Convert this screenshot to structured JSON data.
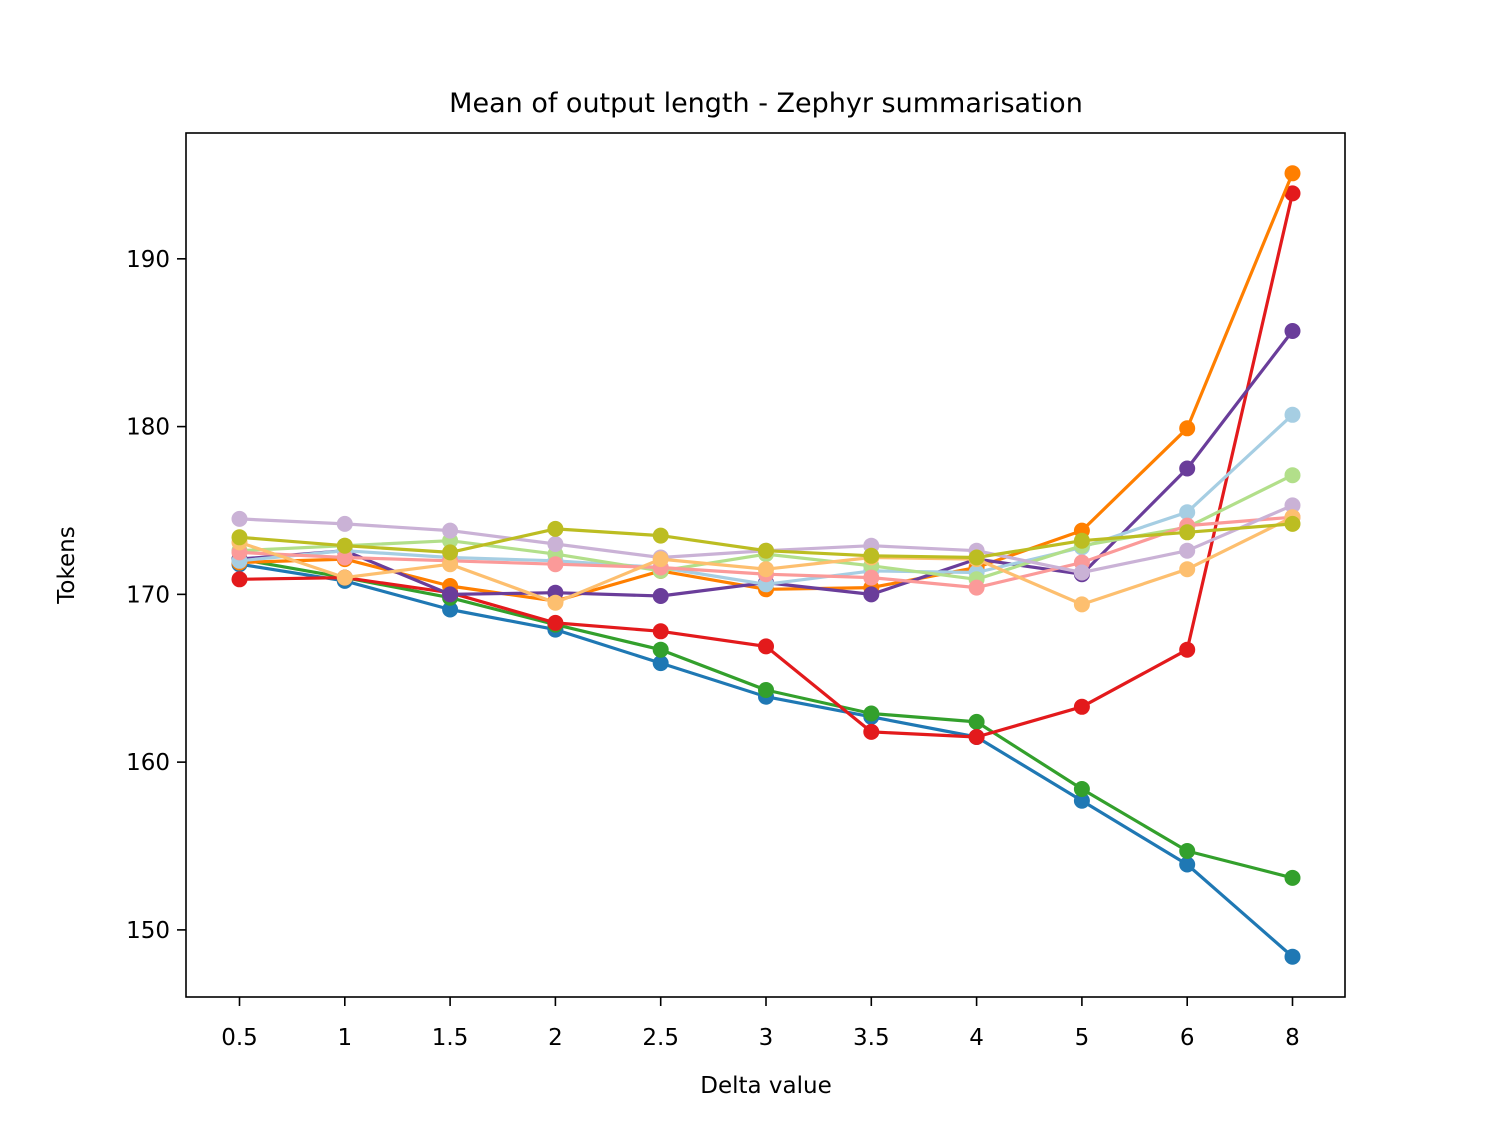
{
  "chart_data": {
    "type": "line",
    "title": "Mean of output length - Zephyr summarisation",
    "xlabel": "Delta value",
    "ylabel": "Tokens",
    "categories": [
      "0.5",
      "1",
      "1.5",
      "2",
      "2.5",
      "3",
      "3.5",
      "4",
      "5",
      "6",
      "8"
    ],
    "ylim": [
      146,
      197.5
    ],
    "yticks": [
      150,
      160,
      170,
      180,
      190
    ],
    "grid": false,
    "legend": "none",
    "series": [
      {
        "color": "#1f78b4",
        "values": [
          171.8,
          170.8,
          169.1,
          167.9,
          165.9,
          163.9,
          162.7,
          161.5,
          157.7,
          153.9,
          148.4
        ]
      },
      {
        "color": "#33a02c",
        "values": [
          172.1,
          171.0,
          169.8,
          168.2,
          166.7,
          164.3,
          162.9,
          162.4,
          158.4,
          154.7,
          153.1
        ]
      },
      {
        "color": "#e31a1c",
        "values": [
          170.9,
          171.0,
          170.1,
          168.3,
          167.8,
          166.9,
          161.8,
          161.5,
          163.3,
          166.7,
          193.9
        ]
      },
      {
        "color": "#ff7f00",
        "values": [
          171.9,
          172.1,
          170.5,
          169.6,
          171.4,
          170.3,
          170.4,
          171.6,
          173.8,
          179.9,
          195.1
        ]
      },
      {
        "color": "#6a3d9a",
        "values": [
          172.1,
          172.6,
          170.0,
          170.1,
          169.9,
          170.7,
          170.0,
          172.1,
          171.2,
          177.5,
          185.7
        ]
      },
      {
        "color": "#a6cee3",
        "values": [
          172.0,
          172.6,
          172.2,
          172.0,
          171.6,
          170.6,
          171.4,
          171.3,
          172.8,
          174.9,
          180.7
        ]
      },
      {
        "color": "#b2df8a",
        "values": [
          172.6,
          172.9,
          173.2,
          172.4,
          171.4,
          172.4,
          171.7,
          170.9,
          172.9,
          174.0,
          177.1
        ]
      },
      {
        "color": "#fb9a99",
        "values": [
          172.5,
          172.2,
          172.0,
          171.8,
          171.6,
          171.2,
          171.0,
          170.4,
          171.9,
          174.1,
          174.6
        ]
      },
      {
        "color": "#cab2d6",
        "values": [
          174.5,
          174.2,
          173.8,
          173.0,
          172.2,
          172.6,
          172.9,
          172.6,
          171.3,
          172.6,
          175.3
        ]
      },
      {
        "color": "#fdbf6f",
        "values": [
          173.1,
          171.0,
          171.8,
          169.5,
          172.1,
          171.5,
          172.2,
          172.1,
          169.4,
          171.5,
          174.6
        ]
      },
      {
        "color": "#bcbd22",
        "values": [
          173.4,
          172.9,
          172.5,
          173.9,
          173.5,
          172.6,
          172.3,
          172.2,
          173.2,
          173.7,
          174.2
        ]
      }
    ]
  }
}
